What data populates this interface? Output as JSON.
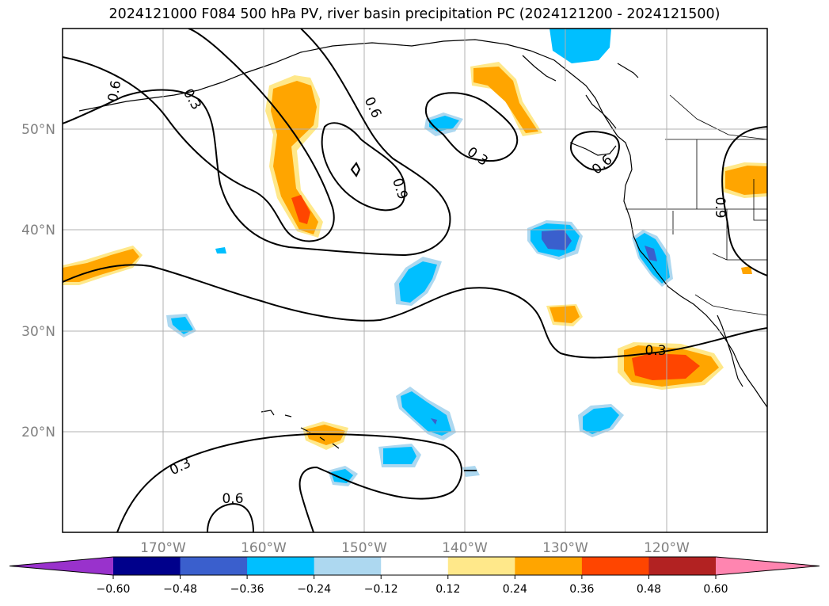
{
  "title": "2024121000 F084 500 hPa PV, river basin precipitation PC (2024121200 - 2024121500)",
  "lon_labels": [
    "170°W",
    "160°W",
    "150°W",
    "140°W",
    "130°W",
    "120°W"
  ],
  "lat_labels": [
    "50°N",
    "40°N",
    "30°N",
    "20°N"
  ],
  "contour_labels": [
    "0.3",
    "0.6",
    "0.9",
    "0.6",
    "0.3",
    "0.3",
    "0.6",
    "0.9",
    "0.6",
    "0.3",
    "0.6"
  ],
  "colorbar": {
    "ticks": [
      "−0.60",
      "−0.48",
      "−0.36",
      "−0.24",
      "−0.12",
      "0.12",
      "0.24",
      "0.36",
      "0.48",
      "0.60"
    ],
    "colors": [
      "#9932cc",
      "#00008b",
      "#3a5fcd",
      "#00bfff",
      "#add8f0",
      "#ffffff",
      "#ffe88a",
      "#ffa500",
      "#ff4500",
      "#b22222",
      "#ff85b0"
    ]
  },
  "palette": {
    "light_yellow": "#ffe88a",
    "orange": "#ffa500",
    "red_orange": "#ff4500",
    "light_blue": "#add8f0",
    "sky_blue": "#00bfff",
    "royal_blue": "#3a5fcd",
    "grid": "#b0b0b0"
  }
}
